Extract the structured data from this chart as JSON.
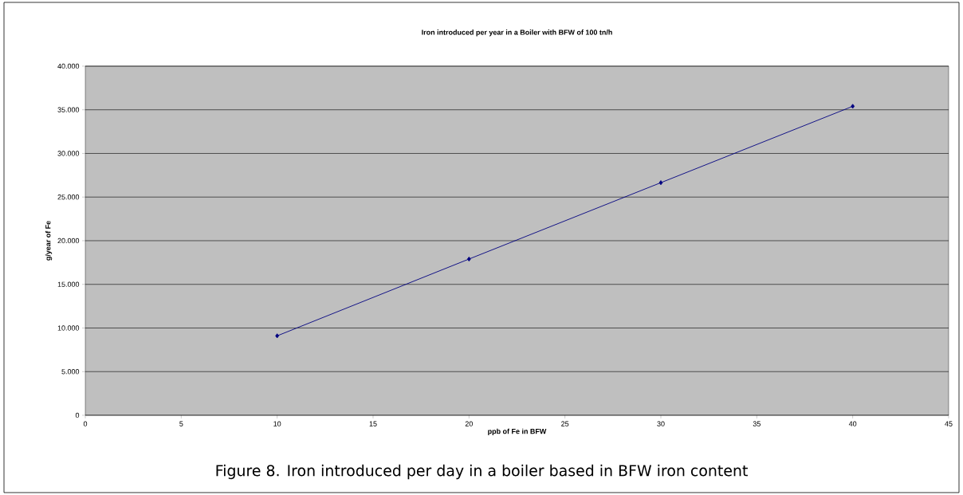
{
  "chart_data": {
    "type": "line",
    "title": "Iron introduced per year in a Boiler with BFW of 100 tn/h",
    "xlabel": "ppb of Fe in BFW",
    "ylabel": "g/year of Fe",
    "annotations": [
      "Figure 8. Iron introduced per day in a boiler based in BFW iron content"
    ],
    "x": [
      10,
      20,
      30,
      40
    ],
    "series": [
      {
        "color": "#000080",
        "values": [
          9100,
          17900,
          26650,
          35400
        ]
      }
    ],
    "xlim": [
      0,
      45
    ],
    "xticks": [
      0,
      5,
      10,
      15,
      20,
      25,
      30,
      35,
      40,
      45
    ],
    "ylim": [
      0,
      40000
    ],
    "yticks": [
      0,
      {
        "value": 5000,
        "label": "5.000"
      },
      {
        "value": 10000,
        "label": "10.000"
      },
      {
        "value": 15000,
        "label": "15.000"
      },
      {
        "value": 20000,
        "label": "20.000"
      },
      {
        "value": 25000,
        "label": "25.000"
      },
      {
        "value": 30000,
        "label": "30.000"
      },
      {
        "value": 35000,
        "label": "35.000"
      },
      {
        "value": 40000,
        "label": "40.000"
      }
    ],
    "grid": "y",
    "marker": "diamond",
    "line_style": "solid"
  }
}
